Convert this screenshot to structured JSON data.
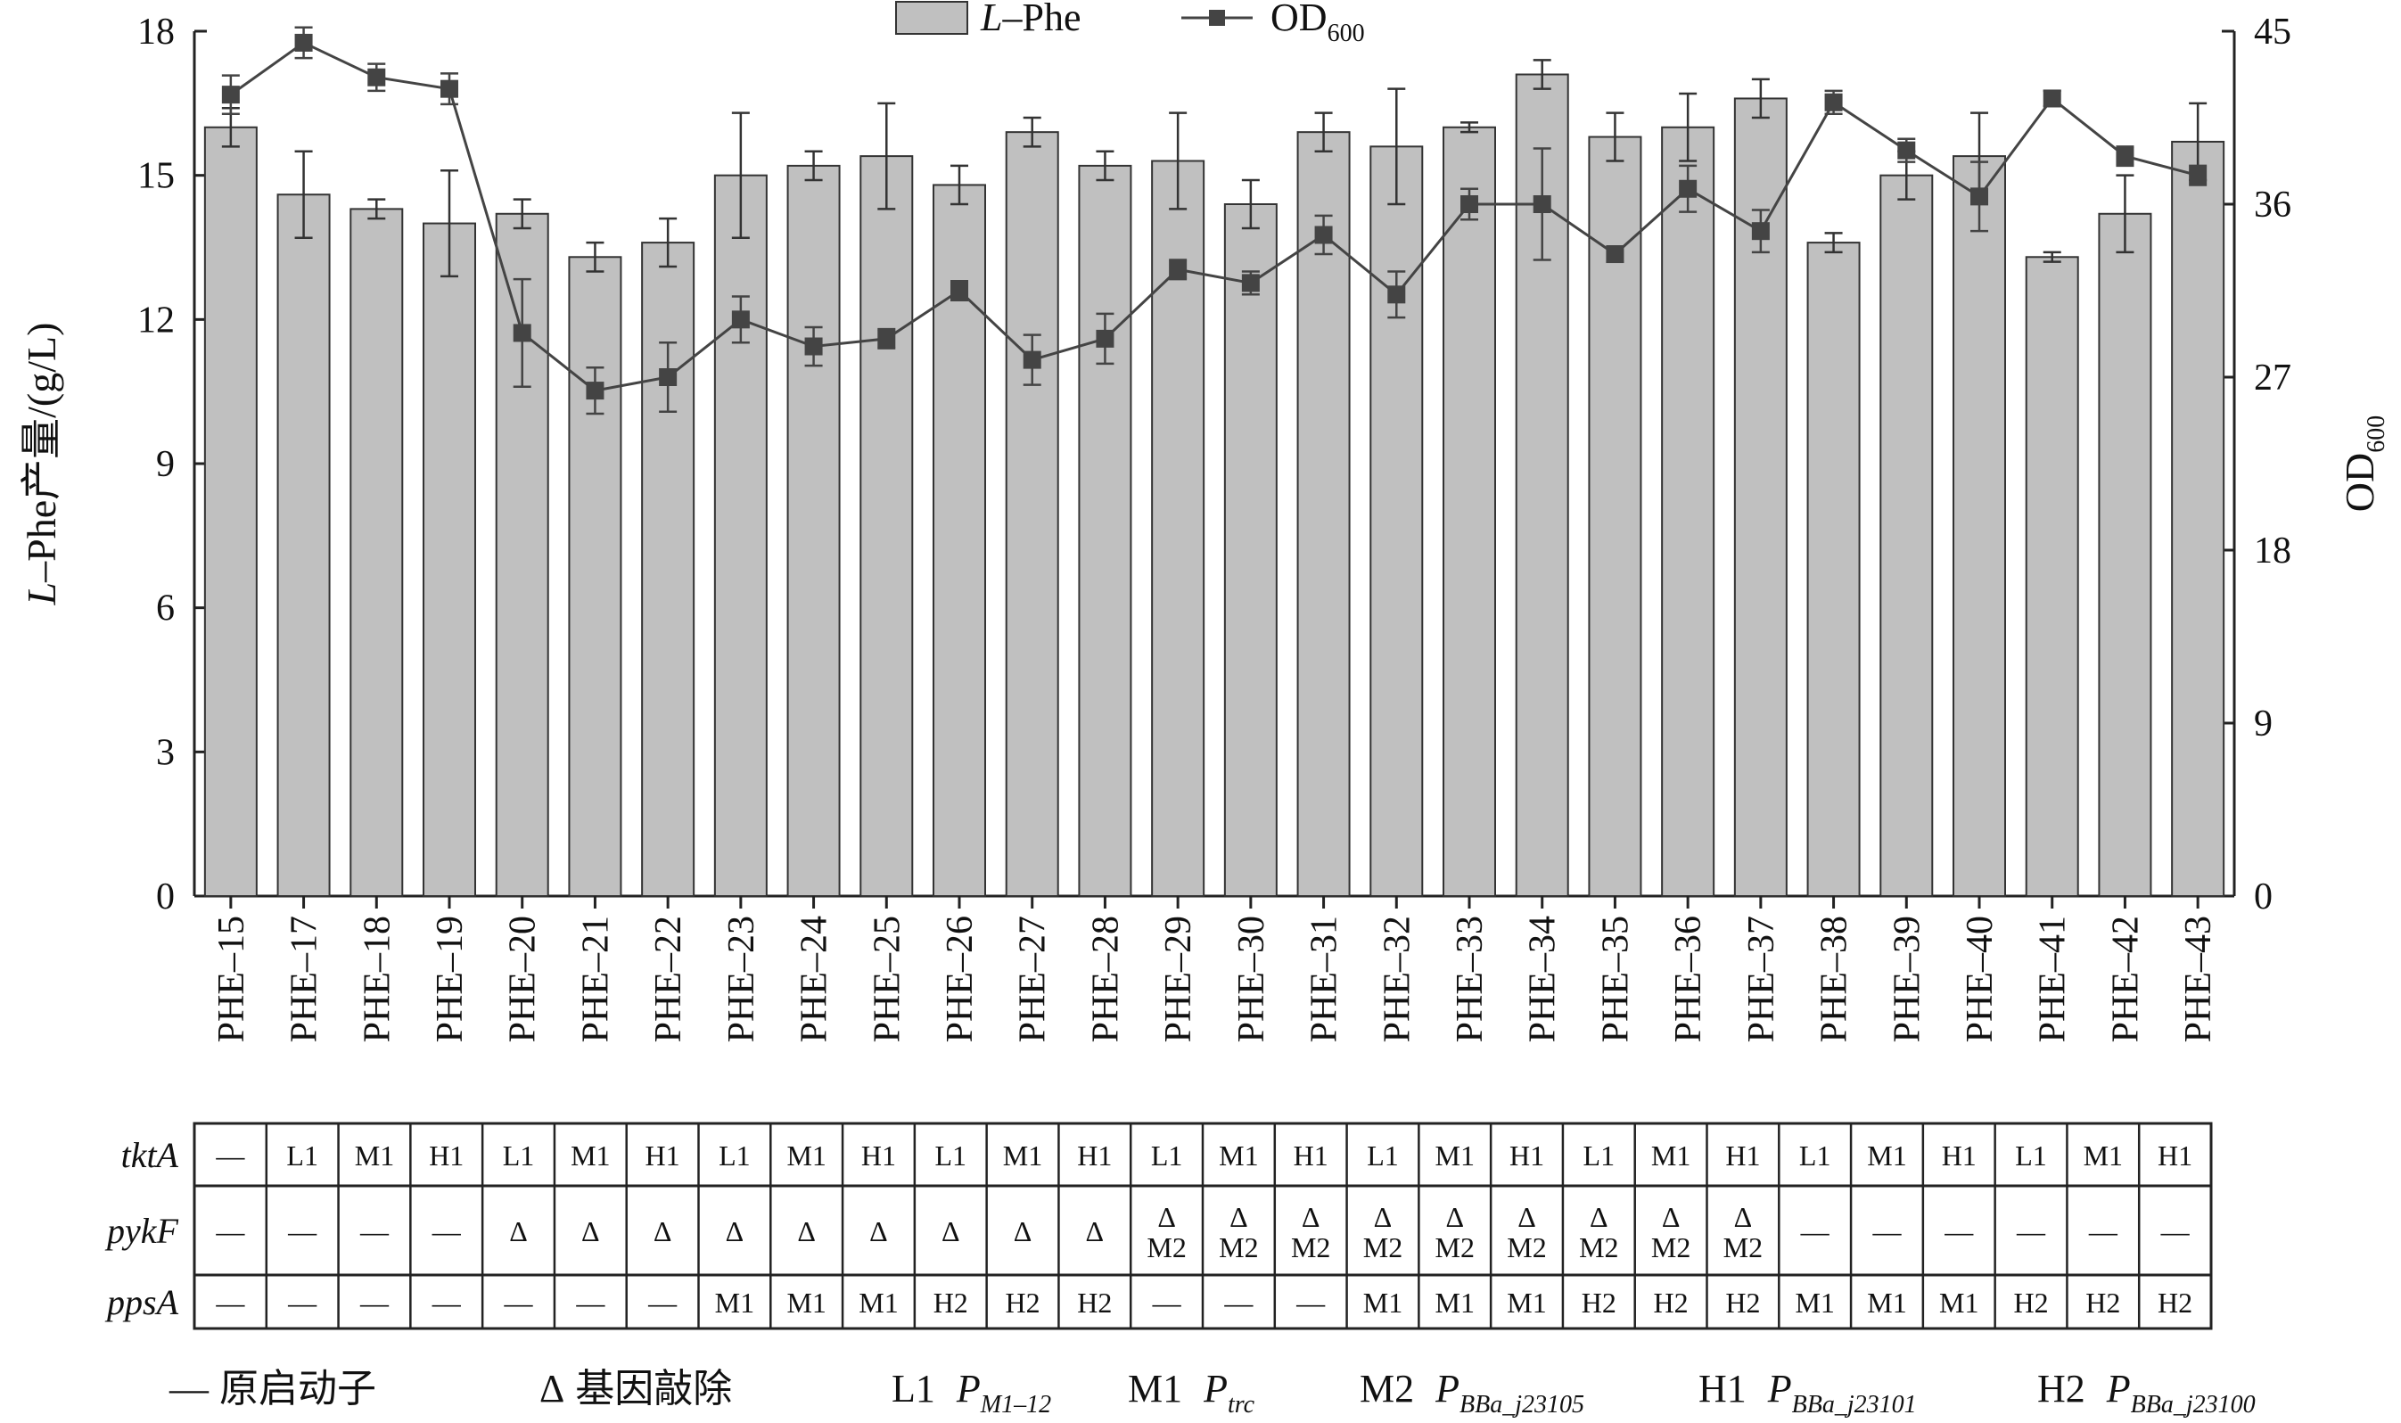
{
  "chart_data": {
    "type": "bar",
    "categories": [
      "PHE-15",
      "PHE-17",
      "PHE-18",
      "PHE-19",
      "PHE-20",
      "PHE-21",
      "PHE-22",
      "PHE-23",
      "PHE-24",
      "PHE-25",
      "PHE-26",
      "PHE-27",
      "PHE-28",
      "PHE-29",
      "PHE-30",
      "PHE-31",
      "PHE-32",
      "PHE-33",
      "PHE-34",
      "PHE-35",
      "PHE-36",
      "PHE-37",
      "PHE-38",
      "PHE-39",
      "PHE-40",
      "PHE-41",
      "PHE-42",
      "PHE-43"
    ],
    "category_labels": [
      "PHE–15",
      "PHE–17",
      "PHE–18",
      "PHE–19",
      "PHE–20",
      "PHE–21",
      "PHE–22",
      "PHE–23",
      "PHE–24",
      "PHE–25",
      "PHE–26",
      "PHE–27",
      "PHE–28",
      "PHE–29",
      "PHE–30",
      "PHE–31",
      "PHE–32",
      "PHE–33",
      "PHE–34",
      "PHE–35",
      "PHE–36",
      "PHE–37",
      "PHE–38",
      "PHE–39",
      "PHE–40",
      "PHE–41",
      "PHE–42",
      "PHE–43"
    ],
    "series": [
      {
        "name": "L–Phe",
        "name_italic": "L",
        "name_rest": "–Phe",
        "type": "bar",
        "axis": "left",
        "color": "#c0c0c0",
        "values": [
          16.0,
          14.6,
          14.3,
          14.0,
          14.2,
          13.3,
          13.6,
          15.0,
          15.2,
          15.4,
          14.8,
          15.9,
          15.2,
          15.3,
          14.4,
          15.9,
          15.6,
          16.0,
          17.1,
          15.8,
          16.0,
          16.6,
          13.6,
          15.0,
          15.4,
          13.3,
          14.2,
          15.7
        ],
        "errors": [
          0.4,
          0.9,
          0.2,
          1.1,
          0.3,
          0.3,
          0.5,
          1.3,
          0.3,
          1.1,
          0.4,
          0.3,
          0.3,
          1.0,
          0.5,
          0.4,
          1.2,
          0.1,
          0.3,
          0.5,
          0.7,
          0.4,
          0.2,
          0.5,
          0.9,
          0.1,
          0.8,
          0.8
        ]
      },
      {
        "name": "OD600",
        "name_main": "OD",
        "name_sub": "600",
        "type": "line",
        "axis": "right",
        "color": "#444444",
        "values": [
          41.7,
          44.4,
          42.6,
          42.0,
          29.3,
          26.3,
          27.0,
          30.0,
          28.6,
          29.0,
          31.5,
          27.9,
          29.0,
          32.6,
          31.9,
          34.4,
          31.3,
          36.0,
          36.0,
          33.4,
          36.8,
          34.6,
          41.3,
          38.8,
          36.4,
          41.5,
          38.5,
          37.5
        ],
        "errors": [
          1.0,
          0.8,
          0.7,
          0.8,
          2.8,
          1.2,
          1.8,
          1.2,
          1.0,
          0.5,
          0.5,
          1.3,
          1.3,
          0.5,
          0.6,
          1.0,
          1.2,
          0.8,
          2.9,
          0.4,
          1.2,
          1.1,
          0.6,
          0.6,
          1.8,
          0.4,
          0.5,
          0.5
        ]
      }
    ],
    "ylabel_left": "L–Phe产量/(g/L)",
    "ylabel_left_italic": "L",
    "ylabel_left_rest": "–Phe产量/(g/L)",
    "ylabel_right": "OD600",
    "ylabel_right_main": "OD",
    "ylabel_right_sub": "600",
    "ylim_left": [
      0,
      18
    ],
    "ylim_right": [
      0,
      45
    ],
    "yticks_left": [
      0,
      3,
      6,
      9,
      12,
      15,
      18
    ],
    "yticks_right": [
      0,
      9,
      18,
      27,
      36,
      45
    ],
    "legend_position": "top-center",
    "grid": false
  },
  "table": {
    "rows": [
      {
        "label": "tktA",
        "cells": [
          "—",
          "L1",
          "M1",
          "H1",
          "L1",
          "M1",
          "H1",
          "L1",
          "M1",
          "H1",
          "L1",
          "M1",
          "H1",
          "L1",
          "M1",
          "H1",
          "L1",
          "M1",
          "H1",
          "L1",
          "M1",
          "H1",
          "L1",
          "M1",
          "H1",
          "L1",
          "M1",
          "H1"
        ]
      },
      {
        "label": "pykF",
        "cells": [
          "—",
          "—",
          "—",
          "—",
          "Δ",
          "Δ",
          "Δ",
          "Δ",
          "Δ",
          "Δ",
          "Δ",
          "Δ",
          "Δ",
          "Δ M2",
          "Δ M2",
          "Δ M2",
          "Δ M2",
          "Δ M2",
          "Δ M2",
          "Δ M2",
          "Δ M2",
          "Δ M2",
          "—",
          "—",
          "—",
          "—",
          "—",
          "—"
        ]
      },
      {
        "label": "ppsA",
        "cells": [
          "—",
          "—",
          "—",
          "—",
          "—",
          "—",
          "—",
          "M1",
          "M1",
          "M1",
          "H2",
          "H2",
          "H2",
          "—",
          "—",
          "—",
          "M1",
          "M1",
          "M1",
          "H2",
          "H2",
          "H2",
          "M1",
          "M1",
          "M1",
          "H2",
          "H2",
          "H2"
        ]
      }
    ]
  },
  "footnote": [
    {
      "code": "—",
      "text": "原启动子"
    },
    {
      "code": "Δ",
      "text": "基因敲除"
    },
    {
      "code": "L1",
      "p": "P",
      "sub": "M1–12"
    },
    {
      "code": "M1",
      "p": "P",
      "sub": "trc"
    },
    {
      "code": "M2",
      "p": "P",
      "sub": "BBa_j23105"
    },
    {
      "code": "H1",
      "p": "P",
      "sub": "BBa_j23101"
    },
    {
      "code": "H2",
      "p": "P",
      "sub": "BBa_j23100"
    }
  ]
}
